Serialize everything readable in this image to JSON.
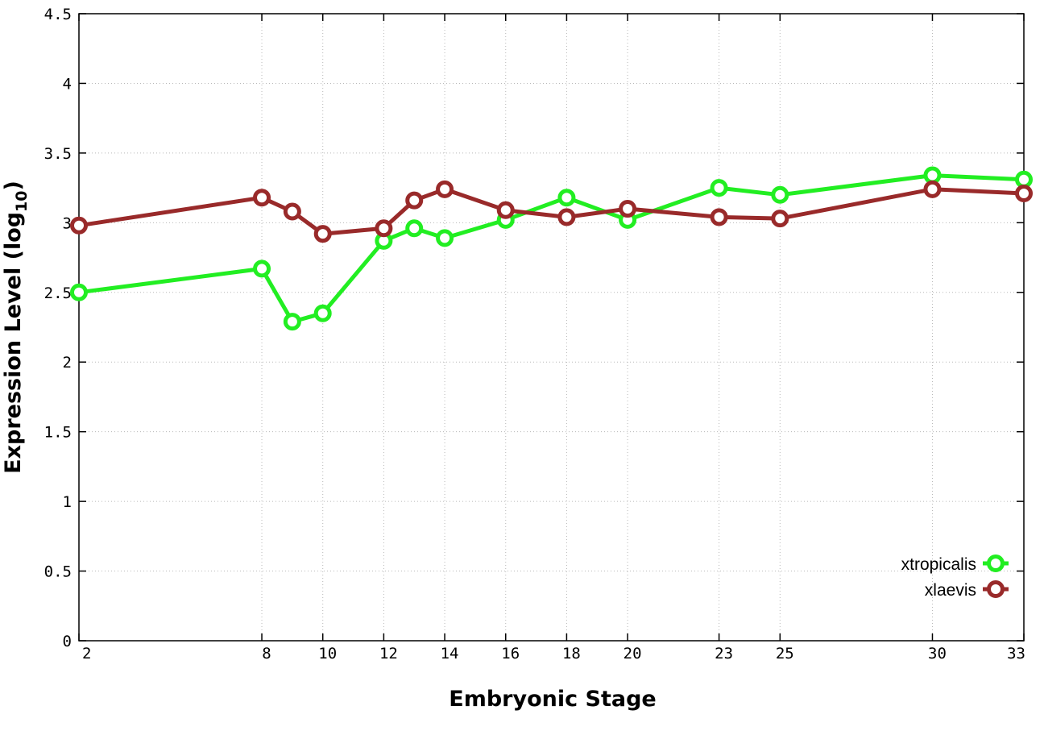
{
  "chart_data": {
    "type": "line",
    "title": "",
    "xlabel": "Embryonic Stage",
    "ylabel_main": "Expression Level (log",
    "ylabel_sub": "10",
    "ylabel_close": ")",
    "x_ticks": [
      2,
      8,
      10,
      12,
      14,
      16,
      18,
      20,
      23,
      25,
      30,
      33
    ],
    "x_tick_labels": [
      "2",
      "8",
      "10",
      "12",
      "14",
      "16",
      "18",
      "20",
      "23",
      "25",
      "30",
      "33"
    ],
    "xlim": [
      2,
      33
    ],
    "x_tick_positions": [
      2,
      8,
      10,
      12,
      14,
      16,
      18,
      20,
      23,
      25,
      30,
      33
    ],
    "y_ticks": [
      0,
      0.5,
      1,
      1.5,
      2,
      2.5,
      3,
      3.5,
      4,
      4.5
    ],
    "y_tick_labels": [
      "0",
      "0.5",
      "1",
      "1.5",
      "2",
      "2.5",
      "3",
      "3.5",
      "4",
      "4.5"
    ],
    "ylim": [
      0,
      4.5
    ],
    "grid": true,
    "legend_position": "bottom-right",
    "series": [
      {
        "name": "xtropicalis",
        "color": "#22ee22",
        "points": [
          {
            "x": 2,
            "y": 2.5
          },
          {
            "x": 8,
            "y": 2.67
          },
          {
            "x": 9,
            "y": 2.29
          },
          {
            "x": 10,
            "y": 2.35
          },
          {
            "x": 12,
            "y": 2.87
          },
          {
            "x": 13,
            "y": 2.96
          },
          {
            "x": 14,
            "y": 2.89
          },
          {
            "x": 16,
            "y": 3.02
          },
          {
            "x": 18,
            "y": 3.18
          },
          {
            "x": 20,
            "y": 3.02
          },
          {
            "x": 23,
            "y": 3.25
          },
          {
            "x": 25,
            "y": 3.2
          },
          {
            "x": 30,
            "y": 3.34
          },
          {
            "x": 33,
            "y": 3.31
          }
        ]
      },
      {
        "name": "xlaevis",
        "color": "#992a2a",
        "points": [
          {
            "x": 2,
            "y": 2.98
          },
          {
            "x": 8,
            "y": 3.18
          },
          {
            "x": 9,
            "y": 3.08
          },
          {
            "x": 10,
            "y": 2.92
          },
          {
            "x": 12,
            "y": 2.96
          },
          {
            "x": 13,
            "y": 3.16
          },
          {
            "x": 14,
            "y": 3.24
          },
          {
            "x": 16,
            "y": 3.09
          },
          {
            "x": 18,
            "y": 3.04
          },
          {
            "x": 20,
            "y": 3.1
          },
          {
            "x": 23,
            "y": 3.04
          },
          {
            "x": 25,
            "y": 3.03
          },
          {
            "x": 30,
            "y": 3.24
          },
          {
            "x": 33,
            "y": 3.21
          }
        ]
      }
    ]
  }
}
